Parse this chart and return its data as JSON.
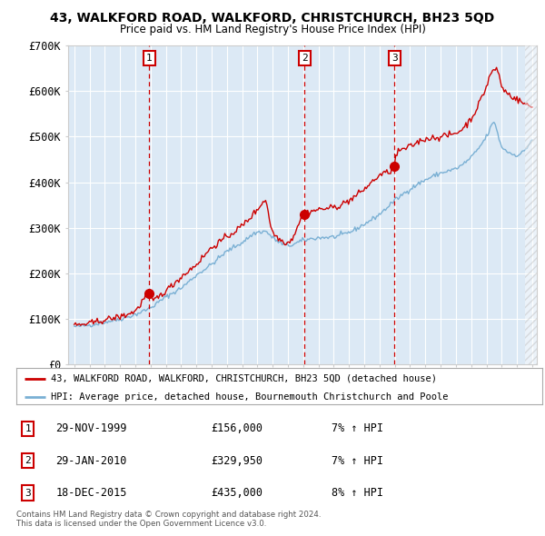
{
  "title": "43, WALKFORD ROAD, WALKFORD, CHRISTCHURCH, BH23 5QD",
  "subtitle": "Price paid vs. HM Land Registry's House Price Index (HPI)",
  "red_label": "43, WALKFORD ROAD, WALKFORD, CHRISTCHURCH, BH23 5QD (detached house)",
  "blue_label": "HPI: Average price, detached house, Bournemouth Christchurch and Poole",
  "footnote1": "Contains HM Land Registry data © Crown copyright and database right 2024.",
  "footnote2": "This data is licensed under the Open Government Licence v3.0.",
  "ylim": [
    0,
    700000
  ],
  "yticks": [
    0,
    100000,
    200000,
    300000,
    400000,
    500000,
    600000,
    700000
  ],
  "ytick_labels": [
    "£0",
    "£100K",
    "£200K",
    "£300K",
    "£400K",
    "£500K",
    "£600K",
    "£700K"
  ],
  "background_color": "#dce9f5",
  "red_color": "#cc0000",
  "blue_color": "#7ab0d4",
  "sale_points": [
    {
      "label": "1",
      "year": 1999.92,
      "price": 156000,
      "date": "29-NOV-1999",
      "pct": "7%",
      "dir": "↑"
    },
    {
      "label": "2",
      "year": 2010.08,
      "price": 329950,
      "date": "29-JAN-2010",
      "pct": "7%",
      "dir": "↑"
    },
    {
      "label": "3",
      "year": 2015.97,
      "price": 435000,
      "date": "18-DEC-2015",
      "pct": "8%",
      "dir": "↑"
    }
  ]
}
